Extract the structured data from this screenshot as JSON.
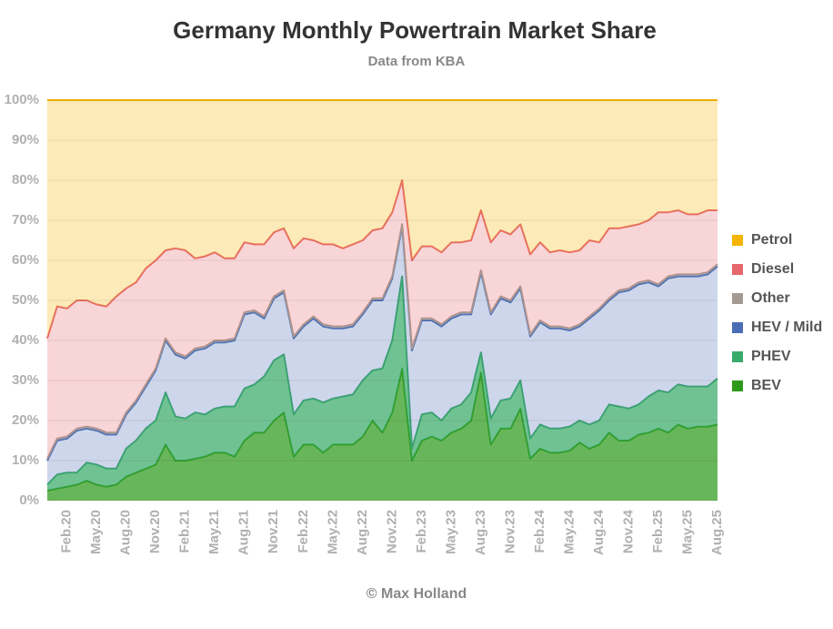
{
  "chart_data": {
    "type": "stacked-area",
    "title": "Germany Monthly Powertrain Market Share",
    "subtitle": "Data from KBA",
    "credit": "© Max Holland",
    "categories": [
      null,
      null,
      "Feb.20",
      null,
      null,
      "May.20",
      null,
      null,
      "Aug.20",
      null,
      null,
      "Nov.20",
      null,
      null,
      "Feb.21",
      null,
      null,
      "May.21",
      null,
      null,
      "Aug.21",
      null,
      null,
      "Nov.21",
      null,
      null,
      "Feb.22",
      null,
      null,
      "May.22",
      null,
      null,
      "Aug.22",
      null,
      null,
      "Nov.22",
      null,
      null,
      "Feb.23",
      null,
      null,
      "May.23",
      null,
      null,
      "Aug.23",
      null,
      null,
      "Nov.23",
      null,
      null,
      "Feb.24",
      null,
      null,
      "May.24",
      null,
      null,
      "Aug.24",
      null,
      null,
      "Nov.24",
      null,
      null,
      "Feb.25",
      null,
      null,
      "May.25",
      null,
      null,
      "Aug.25"
    ],
    "ylim": [
      0,
      100
    ],
    "yticks": [
      {
        "value": 0,
        "label": "0%"
      },
      {
        "value": 10,
        "label": "10%"
      },
      {
        "value": 20,
        "label": "20%"
      },
      {
        "value": 30,
        "label": "30%"
      },
      {
        "value": 40,
        "label": "40%"
      },
      {
        "value": 50,
        "label": "50%"
      },
      {
        "value": 60,
        "label": "60%"
      },
      {
        "value": 70,
        "label": "70%"
      },
      {
        "value": 80,
        "label": "80%"
      },
      {
        "value": 90,
        "label": "90%"
      },
      {
        "value": 100,
        "label": "100%"
      }
    ],
    "grid": true,
    "legend": "right",
    "series": [
      {
        "name": "BEV",
        "color": "#2e9a1c",
        "values": [
          2.5,
          3,
          3.5,
          4,
          5,
          4,
          3.5,
          4,
          6,
          7,
          8,
          9,
          14,
          10,
          10,
          10.5,
          11,
          12,
          12,
          11,
          15,
          17,
          17,
          20,
          22,
          11,
          14,
          14,
          12,
          14,
          14,
          14,
          16,
          20,
          17,
          22,
          33,
          10,
          15,
          16,
          15,
          17,
          18,
          20,
          32,
          14,
          18,
          18,
          23,
          10.5,
          13,
          12,
          12,
          12.5,
          14.5,
          13,
          14,
          17,
          15,
          15,
          16.5,
          17,
          18,
          17,
          19,
          18,
          18.5,
          18.5,
          19
        ]
      },
      {
        "name": "PHEV",
        "color": "#3aaa6a",
        "values": [
          1.5,
          3.5,
          3.5,
          3,
          4.5,
          5,
          4.5,
          4,
          7,
          8,
          10,
          11,
          13,
          11,
          10.5,
          11.5,
          10.5,
          11,
          11.5,
          12.5,
          13,
          12,
          14,
          15,
          14.5,
          10.5,
          11,
          11.5,
          12.5,
          11.5,
          12,
          12.5,
          14,
          12.5,
          16,
          18,
          23,
          3,
          6.5,
          6,
          5,
          6,
          6,
          7,
          5,
          6.5,
          7,
          7.5,
          7,
          5,
          6,
          6,
          6,
          6,
          5.5,
          6,
          6,
          7,
          8.5,
          8,
          7.5,
          9,
          9.5,
          10,
          10,
          10.5,
          10,
          10,
          11.5
        ]
      },
      {
        "name": "HEV / Mild",
        "color": "#4a6db5",
        "values": [
          6,
          8.5,
          8.5,
          10.5,
          8.5,
          8.5,
          8.5,
          8.5,
          8.5,
          9.5,
          10.5,
          12.5,
          13,
          15.5,
          15,
          15.5,
          16.5,
          16.5,
          16,
          16.5,
          18.5,
          18,
          14.5,
          15.5,
          15.5,
          19,
          18.5,
          20,
          19,
          17.5,
          17,
          17,
          16.5,
          17.5,
          17,
          15.5,
          12.5,
          24.5,
          23.5,
          23,
          23.5,
          22.5,
          22.5,
          19.5,
          20,
          26,
          25.5,
          24,
          23,
          25.5,
          25.5,
          25,
          25,
          24,
          23.5,
          26.5,
          27.5,
          26,
          28.5,
          29.5,
          30,
          28.5,
          26,
          28.5,
          27,
          27.5,
          27.5,
          28,
          28
        ]
      },
      {
        "name": "Other",
        "color": "#a39a94",
        "values": [
          0.5,
          0.5,
          0.5,
          0.5,
          0.5,
          0.5,
          0.5,
          0.5,
          0.5,
          0.5,
          0.5,
          0.5,
          0.5,
          0.5,
          0.5,
          0.5,
          0.5,
          0.5,
          0.5,
          0.5,
          0.5,
          0.5,
          0.5,
          0.5,
          0.5,
          0.5,
          0.5,
          0.5,
          0.5,
          0.5,
          0.5,
          0.5,
          0.5,
          0.5,
          0.5,
          0.5,
          0.5,
          0.5,
          0.5,
          0.5,
          0.5,
          0.5,
          0.5,
          0.5,
          0.5,
          0.5,
          0.5,
          0.5,
          0.5,
          0.5,
          0.5,
          0.5,
          0.5,
          0.5,
          0.5,
          0.5,
          0.5,
          0.5,
          0.5,
          0.5,
          0.5,
          0.5,
          0.5,
          0.5,
          0.5,
          0.5,
          0.5,
          0.5,
          0.5
        ]
      },
      {
        "name": "Diesel",
        "color": "#e5676b",
        "values": [
          30,
          33,
          32,
          32,
          31.5,
          31,
          31.5,
          34,
          31,
          29.5,
          29,
          27,
          22,
          26,
          26.5,
          22.5,
          22.5,
          22,
          20.5,
          20,
          17.5,
          16.5,
          18,
          16,
          15.5,
          22,
          21.5,
          19,
          20,
          20.5,
          19.5,
          20,
          18,
          17,
          17.5,
          16,
          11,
          22,
          18,
          18,
          18,
          18.5,
          17.5,
          18,
          15,
          17.5,
          16.5,
          16.5,
          15.5,
          20,
          19.5,
          18.5,
          19,
          19,
          18.5,
          19,
          16.5,
          17.5,
          15.5,
          15.5,
          14.5,
          15,
          18,
          16,
          16,
          15,
          15,
          15.5,
          13.5
        ]
      },
      {
        "name": "Petrol",
        "color": "#f5b400",
        "values": [
          59.5,
          51.5,
          52,
          50,
          50,
          51,
          51.5,
          49,
          47,
          45.5,
          42,
          40,
          37.5,
          37,
          37.5,
          39.5,
          39,
          38,
          39.5,
          39.5,
          35.5,
          36,
          36,
          33,
          32,
          37,
          34.5,
          35,
          36,
          36,
          37,
          36,
          35,
          32.5,
          32,
          28,
          20,
          40,
          36.5,
          36.5,
          38,
          35.5,
          35.5,
          35,
          27.5,
          35.5,
          32.5,
          33.5,
          31,
          38.5,
          35.5,
          38,
          37.5,
          38,
          37.5,
          35,
          35.5,
          32,
          32,
          31.5,
          31,
          30,
          28,
          28,
          27.5,
          28.5,
          28.5,
          27.5,
          27.5
        ]
      }
    ]
  }
}
